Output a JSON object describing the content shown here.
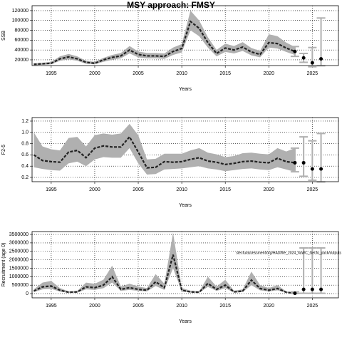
{
  "title": "MSY approach: FMSY",
  "chart_data": [
    {
      "type": "line",
      "y_label": "SSB",
      "x_label": "Years",
      "x": [
        1993,
        1994,
        1995,
        1996,
        1997,
        1998,
        1999,
        2000,
        2001,
        2002,
        2003,
        2004,
        2005,
        2006,
        2007,
        2008,
        2009,
        2010,
        2011,
        2012,
        2013,
        2014,
        2015,
        2016,
        2017,
        2018,
        2019,
        2020,
        2021,
        2022,
        2023
      ],
      "values": [
        11000,
        12000,
        13000,
        22000,
        26000,
        22000,
        15000,
        13000,
        20000,
        25000,
        28000,
        40000,
        31000,
        28000,
        28000,
        27000,
        37000,
        43000,
        98000,
        84000,
        55000,
        33000,
        44000,
        40000,
        46000,
        36000,
        31000,
        55000,
        53000,
        44000,
        37000
      ],
      "lower": [
        9000,
        10000,
        11000,
        18000,
        21000,
        18000,
        12000,
        11000,
        16000,
        20000,
        23000,
        33000,
        25000,
        23000,
        23000,
        22000,
        30000,
        35000,
        80000,
        68000,
        45000,
        27000,
        36000,
        33000,
        38000,
        29000,
        25000,
        45000,
        43000,
        36000,
        30000
      ],
      "upper": [
        13000,
        14000,
        16000,
        27000,
        32000,
        27000,
        18000,
        16000,
        24000,
        30000,
        34000,
        48000,
        37000,
        34000,
        34000,
        33000,
        45000,
        52000,
        120000,
        100000,
        66000,
        40000,
        53000,
        48000,
        56000,
        44000,
        38000,
        72000,
        68000,
        55000,
        46000
      ],
      "forecast": {
        "x": [
          2023,
          2024,
          2025,
          2026
        ],
        "values": [
          37000,
          24000,
          14000,
          22000
        ],
        "lower": [
          27000,
          15000,
          6000,
          8000
        ],
        "upper": [
          47000,
          33000,
          45000,
          105000
        ]
      },
      "xlim": [
        1992.8,
        2028
      ],
      "ylim": [
        8400,
        130000
      ],
      "xticks": [
        1995,
        2000,
        2005,
        2010,
        2015,
        2020,
        2025
      ],
      "yticks": [
        20000,
        40000,
        60000,
        80000,
        100000,
        120000
      ],
      "grid": true,
      "color": "#222222",
      "band_color": "#b0b0b0"
    },
    {
      "type": "line",
      "y_label": "F2-5",
      "x_label": "Years",
      "x": [
        1993,
        1994,
        1995,
        1996,
        1997,
        1998,
        1999,
        2000,
        2001,
        2002,
        2003,
        2004,
        2005,
        2006,
        2007,
        2008,
        2009,
        2010,
        2011,
        2012,
        2013,
        2014,
        2015,
        2016,
        2017,
        2018,
        2019,
        2020,
        2021,
        2022,
        2023
      ],
      "values": [
        0.6,
        0.5,
        0.48,
        0.47,
        0.65,
        0.68,
        0.55,
        0.72,
        0.76,
        0.74,
        0.74,
        0.92,
        0.65,
        0.37,
        0.38,
        0.48,
        0.47,
        0.48,
        0.52,
        0.55,
        0.49,
        0.47,
        0.43,
        0.45,
        0.48,
        0.49,
        0.47,
        0.46,
        0.54,
        0.48,
        0.46
      ],
      "lower": [
        0.38,
        0.35,
        0.33,
        0.32,
        0.45,
        0.48,
        0.4,
        0.52,
        0.56,
        0.55,
        0.55,
        0.72,
        0.45,
        0.25,
        0.26,
        0.34,
        0.35,
        0.36,
        0.38,
        0.4,
        0.36,
        0.34,
        0.31,
        0.33,
        0.35,
        0.36,
        0.34,
        0.33,
        0.38,
        0.34,
        0.3
      ],
      "upper": [
        1.0,
        0.75,
        0.7,
        0.68,
        0.9,
        0.92,
        0.75,
        0.95,
        0.98,
        0.96,
        0.98,
        1.15,
        0.95,
        0.52,
        0.53,
        0.62,
        0.62,
        0.62,
        0.68,
        0.72,
        0.64,
        0.61,
        0.56,
        0.58,
        0.63,
        0.64,
        0.62,
        0.61,
        0.72,
        0.66,
        0.72
      ],
      "forecast": {
        "x": [
          2023,
          2024,
          2025,
          2026
        ],
        "values": [
          0.46,
          0.46,
          0.35,
          0.35
        ],
        "lower": [
          0.3,
          0.22,
          0.15,
          0.12
        ],
        "upper": [
          0.72,
          0.92,
          0.85,
          0.98
        ]
      },
      "xlim": [
        1992.8,
        2028
      ],
      "ylim": [
        0.124,
        1.263
      ],
      "xticks": [
        1995,
        2000,
        2005,
        2010,
        2015,
        2020,
        2025
      ],
      "yticks": [
        0.2,
        0.4,
        0.6,
        0.8,
        {
          "value": 1,
          "label": "1.0"
        },
        1.2
      ],
      "grid": true,
      "color": "#222222",
      "band_color": "#b0b0b0"
    },
    {
      "type": "line",
      "y_label": "Recruitment (age 0)",
      "x_label": "Years",
      "annotation": "stecfu/assessment/org/HAD/file_2024_haWC_stecfu_pack/outputs",
      "x": [
        1993,
        1994,
        1995,
        1996,
        1997,
        1998,
        1999,
        2000,
        2001,
        2002,
        2003,
        2004,
        2005,
        2006,
        2007,
        2008,
        2009,
        2010,
        2011,
        2012,
        2013,
        2014,
        2015,
        2016,
        2017,
        2018,
        2019,
        2020,
        2021,
        2022,
        2023
      ],
      "values": [
        150000,
        400000,
        450000,
        200000,
        80000,
        100000,
        400000,
        350000,
        500000,
        1000000,
        250000,
        350000,
        250000,
        200000,
        700000,
        350000,
        2300000,
        200000,
        100000,
        80000,
        600000,
        250000,
        500000,
        100000,
        150000,
        800000,
        300000,
        200000,
        300000,
        80000,
        20000
      ],
      "lower": [
        90000,
        250000,
        280000,
        120000,
        50000,
        60000,
        250000,
        220000,
        320000,
        650000,
        160000,
        220000,
        160000,
        130000,
        450000,
        220000,
        1500000,
        130000,
        60000,
        50000,
        400000,
        160000,
        320000,
        60000,
        90000,
        500000,
        190000,
        130000,
        190000,
        50000,
        10000
      ],
      "upper": [
        250000,
        650000,
        750000,
        330000,
        130000,
        160000,
        650000,
        580000,
        820000,
        1650000,
        420000,
        580000,
        420000,
        330000,
        1150000,
        580000,
        3600000,
        330000,
        170000,
        130000,
        1000000,
        420000,
        820000,
        170000,
        250000,
        1300000,
        500000,
        330000,
        500000,
        130000,
        40000
      ],
      "forecast": {
        "x": [
          2023,
          2024,
          2025,
          2026
        ],
        "values": [
          20000,
          250000,
          250000,
          250000
        ],
        "lower": [
          5000,
          20000,
          20000,
          20000
        ],
        "upper": [
          100000,
          2700000,
          2700000,
          2700000
        ]
      },
      "xlim": [
        1992.8,
        2028
      ],
      "ylim": [
        -250000,
        3670000
      ],
      "xticks": [
        1995,
        2000,
        2005,
        2010,
        2015,
        2020,
        2025
      ],
      "yticks": [
        0,
        500000,
        1000000,
        1500000,
        2000000,
        2500000,
        3000000,
        3500000
      ],
      "grid": true,
      "color": "#222222",
      "band_color": "#b0b0b0"
    }
  ]
}
